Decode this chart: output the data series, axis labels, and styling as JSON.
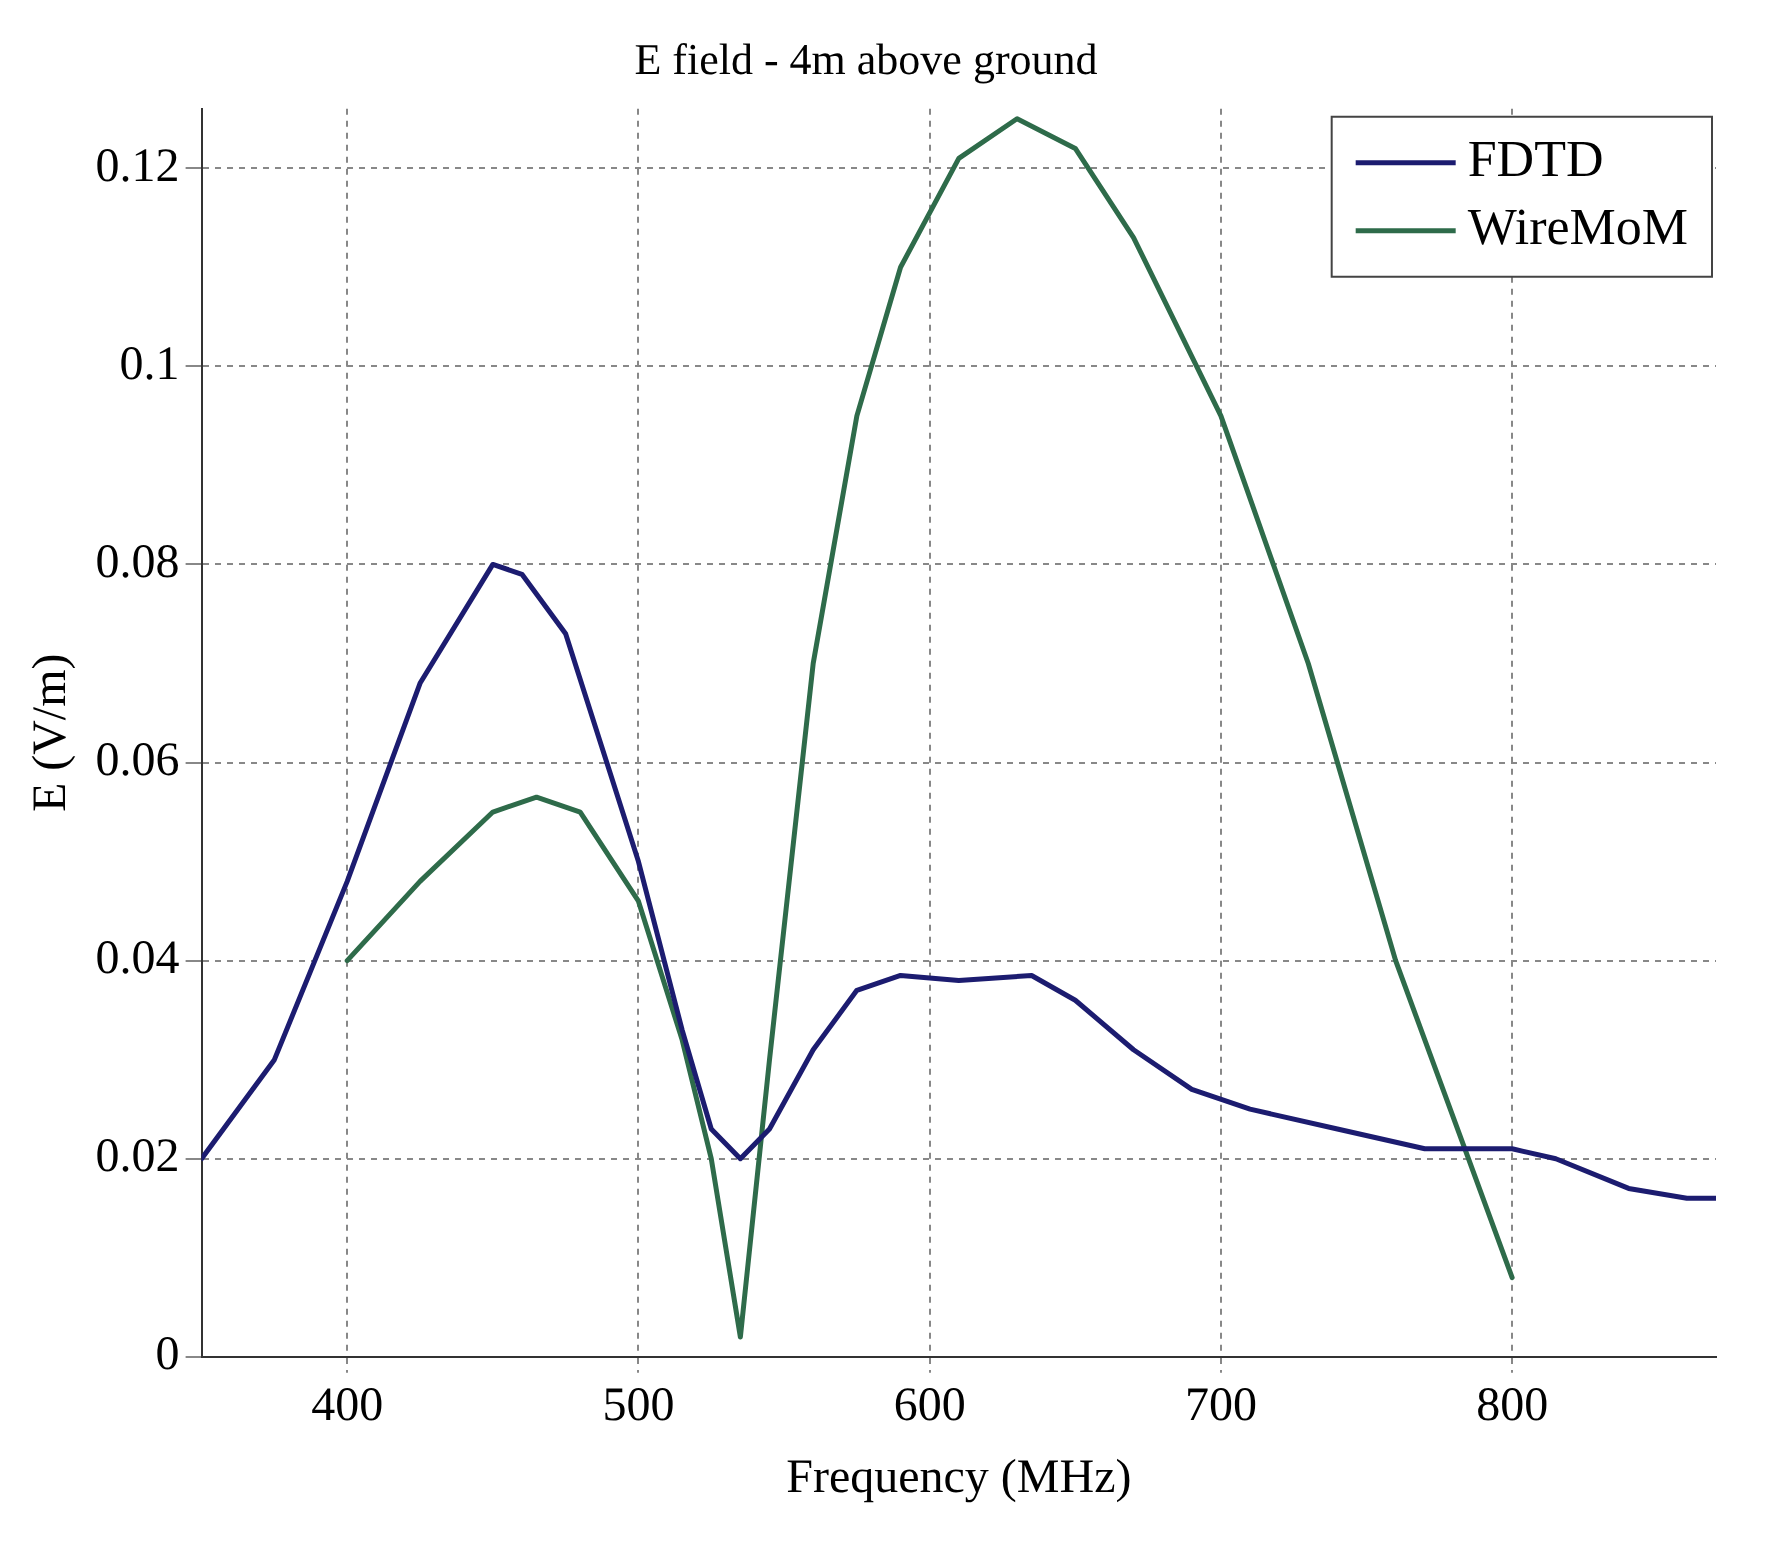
{
  "chart_data": {
    "type": "line",
    "title": "E field - 4m above ground",
    "xlabel": "Frequency (MHz)",
    "ylabel": "E (V/m)",
    "xlim": [
      350,
      870
    ],
    "xticks": [
      400,
      500,
      600,
      700,
      800
    ],
    "ylim": [
      0,
      0.126
    ],
    "yticks": [
      0,
      0.02,
      0.04,
      0.06,
      0.08,
      0.1,
      0.12
    ],
    "grid": true,
    "legend": "top right",
    "line_style": "solid",
    "marker": "none",
    "series": [
      {
        "name": "FDTD",
        "color": "#1c1c70",
        "x": [
          350,
          375,
          400,
          425,
          450,
          460,
          475,
          500,
          515,
          525,
          535,
          545,
          560,
          575,
          590,
          610,
          635,
          650,
          670,
          690,
          710,
          740,
          770,
          800,
          815,
          840,
          860,
          870
        ],
        "values": [
          0.02,
          0.03,
          0.048,
          0.068,
          0.08,
          0.079,
          0.073,
          0.05,
          0.033,
          0.023,
          0.02,
          0.023,
          0.031,
          0.037,
          0.0385,
          0.038,
          0.0385,
          0.036,
          0.031,
          0.027,
          0.025,
          0.023,
          0.021,
          0.021,
          0.02,
          0.017,
          0.016,
          0.016
        ]
      },
      {
        "name": "WireMoM",
        "color": "#2e6b4a",
        "x": [
          400,
          425,
          450,
          465,
          480,
          500,
          515,
          525,
          535,
          545,
          560,
          575,
          590,
          610,
          630,
          650,
          670,
          700,
          730,
          760,
          785,
          800
        ],
        "values": [
          0.04,
          0.048,
          0.055,
          0.0565,
          0.055,
          0.046,
          0.032,
          0.02,
          0.002,
          0.03,
          0.07,
          0.095,
          0.11,
          0.121,
          0.125,
          0.122,
          0.113,
          0.095,
          0.07,
          0.04,
          0.02,
          0.008
        ]
      }
    ]
  }
}
